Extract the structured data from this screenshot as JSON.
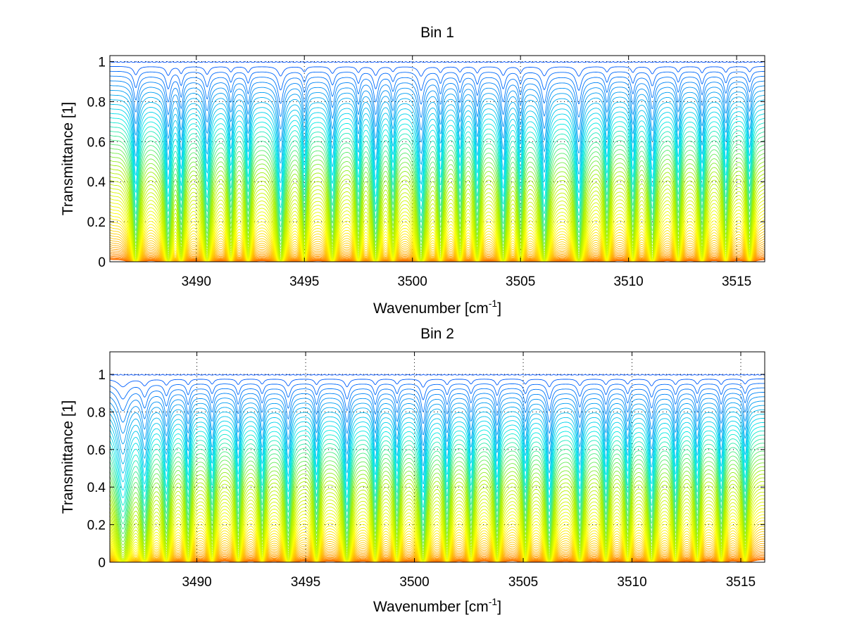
{
  "chart_data": [
    {
      "type": "line",
      "title": "Bin 1",
      "xlabel": "Wavenumber [cm",
      "xlabel_sup": "-1",
      "xlabel_close": "]",
      "ylabel": "Transmittance [1]",
      "xlim": [
        3486,
        3516.3
      ],
      "ylim": [
        0,
        1.03
      ],
      "xticks": [
        3490,
        3495,
        3500,
        3505,
        3510,
        3515
      ],
      "xtick_labels": [
        "3490",
        "3495",
        "3500",
        "3505",
        "3510",
        "3515"
      ],
      "yticks": [
        0,
        0.2,
        0.4,
        0.6,
        0.8,
        1
      ],
      "ytick_labels": [
        "0",
        "0.2",
        "0.4",
        "0.6",
        "0.8",
        "1"
      ],
      "grid": true,
      "colormap": [
        "#ff6a00",
        "#ffb400",
        "#ffff00",
        "#a8f000",
        "#00e8e8",
        "#0050ff"
      ],
      "n_series": 60,
      "series_level_range": [
        0.0,
        1.0
      ],
      "absorption_lines": [
        {
          "x": 3487.2,
          "depth": 0.85,
          "width": 0.12
        },
        {
          "x": 3488.7,
          "depth": 0.9,
          "width": 0.12
        },
        {
          "x": 3489.3,
          "depth": 0.7,
          "width": 0.1
        },
        {
          "x": 3490.5,
          "depth": 0.8,
          "width": 0.12
        },
        {
          "x": 3491.6,
          "depth": 0.55,
          "width": 0.1
        },
        {
          "x": 3492.4,
          "depth": 0.6,
          "width": 0.1
        },
        {
          "x": 3493.9,
          "depth": 0.98,
          "width": 0.14
        },
        {
          "x": 3495.0,
          "depth": 0.55,
          "width": 0.1
        },
        {
          "x": 3496.3,
          "depth": 0.7,
          "width": 0.12
        },
        {
          "x": 3497.5,
          "depth": 0.6,
          "width": 0.1
        },
        {
          "x": 3498.3,
          "depth": 0.9,
          "width": 0.12
        },
        {
          "x": 3499.1,
          "depth": 0.5,
          "width": 0.1
        },
        {
          "x": 3500.4,
          "depth": 0.99,
          "width": 0.14
        },
        {
          "x": 3501.3,
          "depth": 0.6,
          "width": 0.1
        },
        {
          "x": 3502.2,
          "depth": 0.55,
          "width": 0.1
        },
        {
          "x": 3503.0,
          "depth": 0.65,
          "width": 0.1
        },
        {
          "x": 3504.2,
          "depth": 0.9,
          "width": 0.12
        },
        {
          "x": 3505.0,
          "depth": 0.6,
          "width": 0.1
        },
        {
          "x": 3506.1,
          "depth": 0.95,
          "width": 0.14
        },
        {
          "x": 3507.7,
          "depth": 0.99,
          "width": 0.14
        },
        {
          "x": 3509.0,
          "depth": 0.55,
          "width": 0.1
        },
        {
          "x": 3510.2,
          "depth": 0.6,
          "width": 0.1
        },
        {
          "x": 3511.1,
          "depth": 0.75,
          "width": 0.12
        },
        {
          "x": 3512.3,
          "depth": 0.55,
          "width": 0.1
        },
        {
          "x": 3513.4,
          "depth": 0.65,
          "width": 0.1
        },
        {
          "x": 3514.5,
          "depth": 0.6,
          "width": 0.1
        },
        {
          "x": 3515.6,
          "depth": 0.55,
          "width": 0.1
        }
      ]
    },
    {
      "type": "line",
      "title": "Bin 2",
      "xlabel": "Wavenumber [cm",
      "xlabel_sup": "-1",
      "xlabel_close": "]",
      "ylabel": "Transmittance [1]",
      "xlim": [
        3486,
        3516.1
      ],
      "ylim": [
        0,
        1.12
      ],
      "xticks": [
        3490,
        3495,
        3500,
        3505,
        3510,
        3515
      ],
      "xtick_labels": [
        "3490",
        "3495",
        "3500",
        "3505",
        "3510",
        "3515"
      ],
      "yticks": [
        0,
        0.2,
        0.4,
        0.6,
        0.8,
        1
      ],
      "ytick_labels": [
        "0",
        "0.2",
        "0.4",
        "0.6",
        "0.8",
        "1"
      ],
      "grid": true,
      "colormap": [
        "#ff6a00",
        "#ffb400",
        "#ffff00",
        "#a8f000",
        "#00e8e8",
        "#0050ff"
      ],
      "n_series": 60,
      "series_level_range": [
        0.0,
        1.0
      ],
      "absorption_lines": [
        {
          "x": 3486.6,
          "depth": 0.85,
          "width": 0.25
        },
        {
          "x": 3487.6,
          "depth": 0.7,
          "width": 0.15
        },
        {
          "x": 3488.6,
          "depth": 0.65,
          "width": 0.12
        },
        {
          "x": 3489.6,
          "depth": 0.6,
          "width": 0.1
        },
        {
          "x": 3490.7,
          "depth": 0.55,
          "width": 0.1
        },
        {
          "x": 3491.9,
          "depth": 0.6,
          "width": 0.1
        },
        {
          "x": 3493.0,
          "depth": 0.55,
          "width": 0.1
        },
        {
          "x": 3494.2,
          "depth": 0.75,
          "width": 0.12
        },
        {
          "x": 3495.5,
          "depth": 0.6,
          "width": 0.1
        },
        {
          "x": 3496.9,
          "depth": 0.85,
          "width": 0.12
        },
        {
          "x": 3498.2,
          "depth": 0.6,
          "width": 0.1
        },
        {
          "x": 3499.2,
          "depth": 0.55,
          "width": 0.1
        },
        {
          "x": 3500.4,
          "depth": 0.9,
          "width": 0.12
        },
        {
          "x": 3501.5,
          "depth": 0.6,
          "width": 0.1
        },
        {
          "x": 3502.6,
          "depth": 0.55,
          "width": 0.1
        },
        {
          "x": 3503.8,
          "depth": 0.65,
          "width": 0.1
        },
        {
          "x": 3505.1,
          "depth": 0.55,
          "width": 0.1
        },
        {
          "x": 3506.2,
          "depth": 0.85,
          "width": 0.12
        },
        {
          "x": 3507.6,
          "depth": 0.7,
          "width": 0.12
        },
        {
          "x": 3508.8,
          "depth": 0.6,
          "width": 0.1
        },
        {
          "x": 3509.8,
          "depth": 0.55,
          "width": 0.1
        },
        {
          "x": 3510.9,
          "depth": 0.75,
          "width": 0.12
        },
        {
          "x": 3512.0,
          "depth": 0.6,
          "width": 0.1
        },
        {
          "x": 3513.0,
          "depth": 0.55,
          "width": 0.1
        },
        {
          "x": 3514.1,
          "depth": 0.6,
          "width": 0.1
        },
        {
          "x": 3515.2,
          "depth": 0.55,
          "width": 0.1
        }
      ]
    }
  ]
}
